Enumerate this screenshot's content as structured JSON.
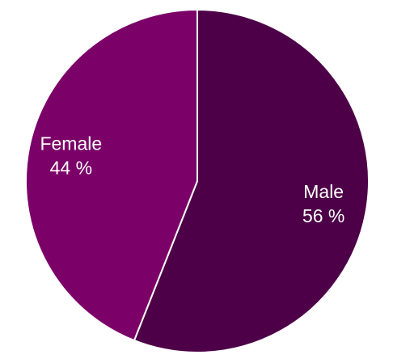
{
  "chart_data": {
    "type": "pie",
    "categories": [
      "Male",
      "Female"
    ],
    "values": [
      56,
      44
    ],
    "value_labels": [
      "56 %",
      "44 %"
    ],
    "colors": [
      "#4d0047",
      "#7b0068"
    ]
  }
}
